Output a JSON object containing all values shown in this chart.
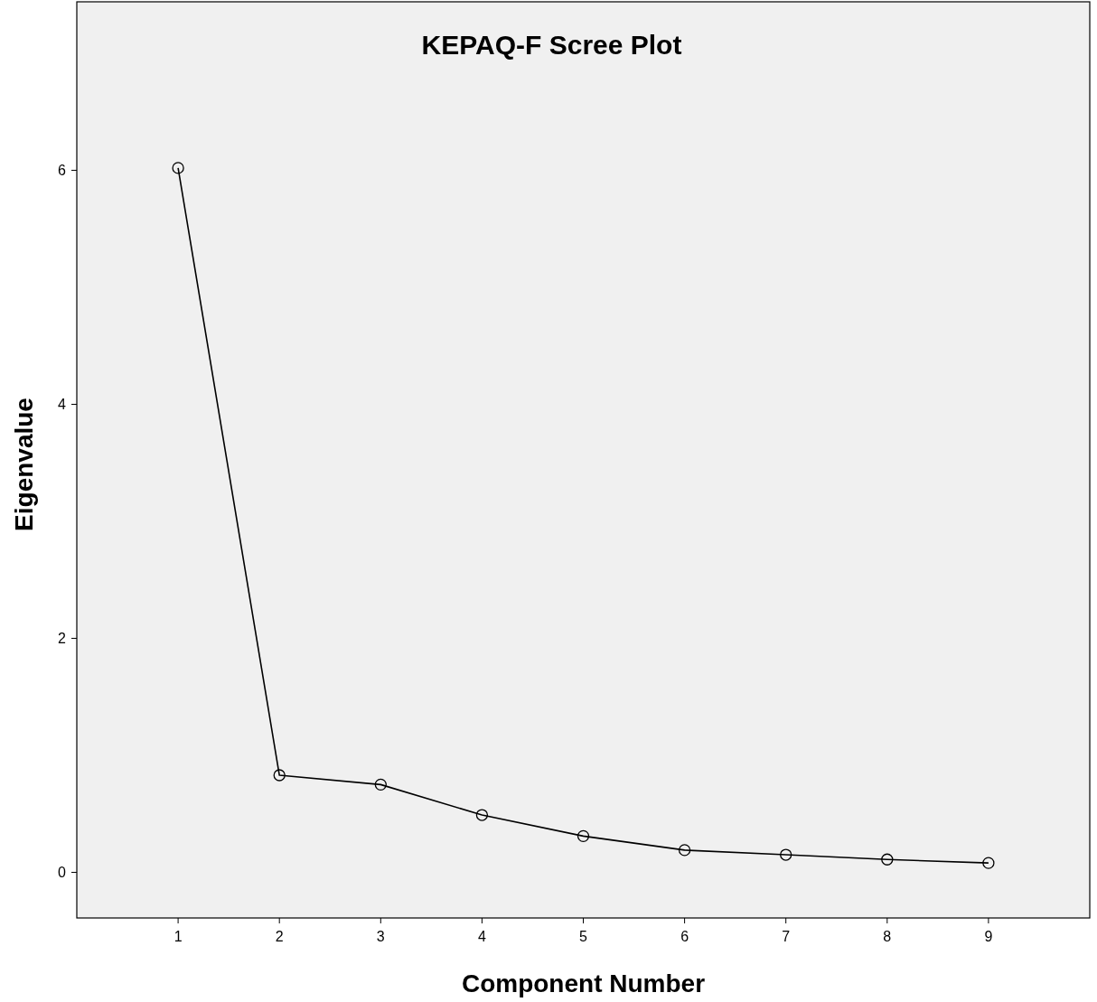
{
  "chart_data": {
    "type": "line",
    "title": "KEPAQ-F Scree Plot",
    "xlabel": "Component Number",
    "ylabel": "Eigenvalue",
    "x": [
      1,
      2,
      3,
      4,
      5,
      6,
      7,
      8,
      9
    ],
    "series": [
      {
        "color": "#000000",
        "values": [
          6.02,
          0.83,
          0.75,
          0.49,
          0.31,
          0.19,
          0.15,
          0.11,
          0.08
        ]
      }
    ],
    "xlim": [
      0,
      10
    ],
    "xticks": [
      1,
      2,
      3,
      4,
      5,
      6,
      7,
      8,
      9
    ],
    "ylim": [
      -0.39,
      7.44
    ],
    "yticks": [
      0,
      2,
      4,
      6
    ],
    "marker": "circle",
    "line_style": "solid",
    "grid": false
  }
}
